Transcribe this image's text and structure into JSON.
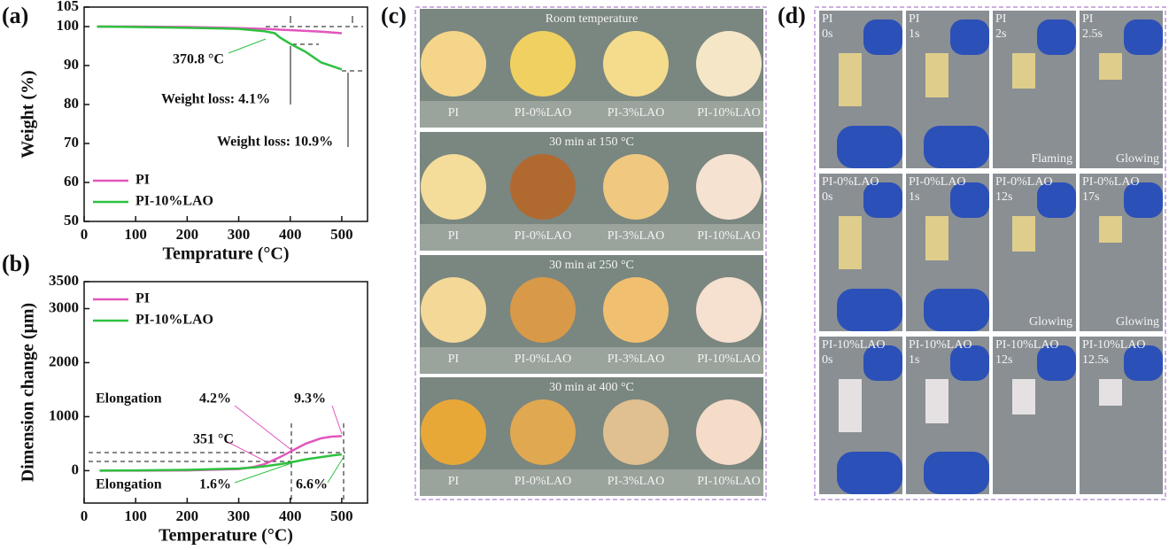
{
  "panel_labels": [
    "(a)",
    "(b)",
    "(c)",
    "(d)"
  ],
  "chart_data": [
    {
      "type": "line",
      "ylabel": "Weight (%)",
      "xlabel": "Temprature (°C)",
      "xlim": [
        0,
        550
      ],
      "xticks": [
        0,
        100,
        200,
        300,
        400,
        500
      ],
      "ylim": [
        50,
        105
      ],
      "yticks": [
        50,
        60,
        70,
        80,
        90,
        100,
        105
      ],
      "x": [
        25,
        100,
        200,
        300,
        350,
        370,
        380,
        400,
        430,
        460,
        500
      ],
      "series": [
        {
          "name": "PI",
          "color": "#e256bd",
          "values": [
            100,
            100,
            99.9,
            99.6,
            99.4,
            99.3,
            99.2,
            99.1,
            98.9,
            98.7,
            98.3
          ]
        },
        {
          "name": "PI-10%LAO",
          "color": "#2ec13f",
          "values": [
            100,
            99.9,
            99.7,
            99.4,
            98.8,
            98.3,
            97.2,
            95.6,
            93.5,
            90.8,
            89.0
          ]
        }
      ],
      "legend": "lower left",
      "annotations": [
        "370.8 °C",
        "Weight loss: 4.1%",
        "Weight loss: 10.9%"
      ]
    },
    {
      "type": "line",
      "ylabel": "Dimension change (μm)",
      "xlabel": "Temperature (°C)",
      "xlim": [
        0,
        550
      ],
      "xticks": [
        0,
        100,
        200,
        300,
        400,
        500
      ],
      "ylim": [
        -600,
        3500
      ],
      "yticks": [
        0,
        1000,
        2000,
        3000,
        3500
      ],
      "x": [
        30,
        100,
        200,
        300,
        330,
        350,
        380,
        400,
        430,
        460,
        480,
        500
      ],
      "series": [
        {
          "name": "PI",
          "color": "#e256bd",
          "values": [
            0,
            0,
            5,
            30,
            70,
            120,
            250,
            350,
            500,
            600,
            630,
            640
          ]
        },
        {
          "name": "PI-10%LAO",
          "color": "#2ec13f",
          "values": [
            0,
            5,
            15,
            40,
            60,
            80,
            120,
            150,
            210,
            250,
            280,
            300
          ]
        }
      ],
      "legend": "upper left",
      "annotations": [
        "Elongation",
        "4.2%",
        "9.3%",
        "351 °C",
        "Elongation",
        "1.6%",
        "6.6%"
      ]
    }
  ],
  "photos_c": {
    "rows": [
      {
        "caption": "Room temperature",
        "labels": [
          "PI",
          "PI-0%LAO",
          "PI-3%LAO",
          "PI-10%LAO"
        ]
      },
      {
        "caption": "30 min at 150 °C",
        "labels": [
          "PI",
          "PI-0%LAO",
          "PI-3%LAO",
          "PI-10%LAO"
        ]
      },
      {
        "caption": "30 min at 250 °C",
        "labels": [
          "PI",
          "PI-0%LAO",
          "PI-3%LAO",
          "PI-10%LAO"
        ]
      },
      {
        "caption": "30 min at 400 °C",
        "labels": [
          "PI",
          "PI-0%LAO",
          "PI-3%LAO",
          "PI-10%LAO"
        ]
      }
    ]
  },
  "photos_d": {
    "rows": [
      [
        {
          "sample": "PI",
          "time": "0s"
        },
        {
          "sample": "PI",
          "time": "1s"
        },
        {
          "sample": "PI",
          "time": "2s",
          "note": "Flaming"
        },
        {
          "sample": "PI",
          "time": "2.5s",
          "note": "Glowing"
        }
      ],
      [
        {
          "sample": "PI-0%LAO",
          "time": "0s"
        },
        {
          "sample": "PI-0%LAO",
          "time": "1s"
        },
        {
          "sample": "PI-0%LAO",
          "time": "12s",
          "note": "Glowing"
        },
        {
          "sample": "PI-0%LAO",
          "time": "17s",
          "note": "Glowing"
        }
      ],
      [
        {
          "sample": "PI-10%LAO",
          "time": "0s"
        },
        {
          "sample": "PI-10%LAO",
          "time": "1s"
        },
        {
          "sample": "PI-10%LAO",
          "time": "12s"
        },
        {
          "sample": "PI-10%LAO",
          "time": "12.5s"
        }
      ]
    ]
  }
}
